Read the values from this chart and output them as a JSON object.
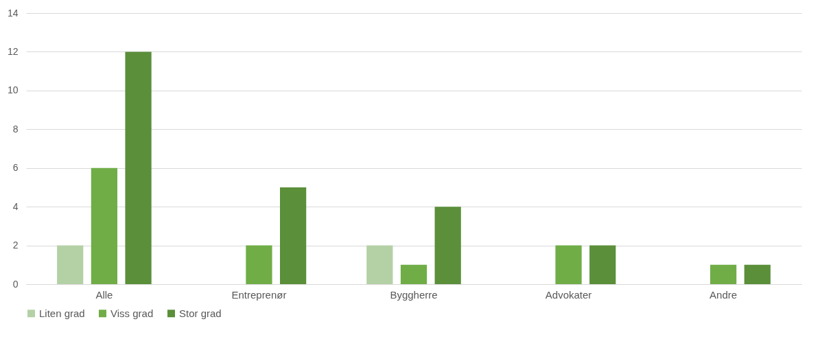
{
  "chart_data": {
    "type": "bar",
    "categories": [
      "Alle",
      "Entreprenør",
      "Byggherre",
      "Advokater",
      "Andre"
    ],
    "series": [
      {
        "name": "Liten grad",
        "color": "#b4d1a6",
        "values": [
          2,
          0,
          2,
          0,
          0
        ]
      },
      {
        "name": "Viss grad",
        "color": "#70ad47",
        "values": [
          6,
          2,
          1,
          2,
          1
        ]
      },
      {
        "name": "Stor grad",
        "color": "#5b8f3a",
        "values": [
          12,
          5,
          4,
          2,
          1
        ]
      }
    ],
    "ylim": [
      0,
      14
    ],
    "yticks": [
      0,
      2,
      4,
      6,
      8,
      10,
      12,
      14
    ],
    "grid": "y",
    "legend": "bottom"
  }
}
